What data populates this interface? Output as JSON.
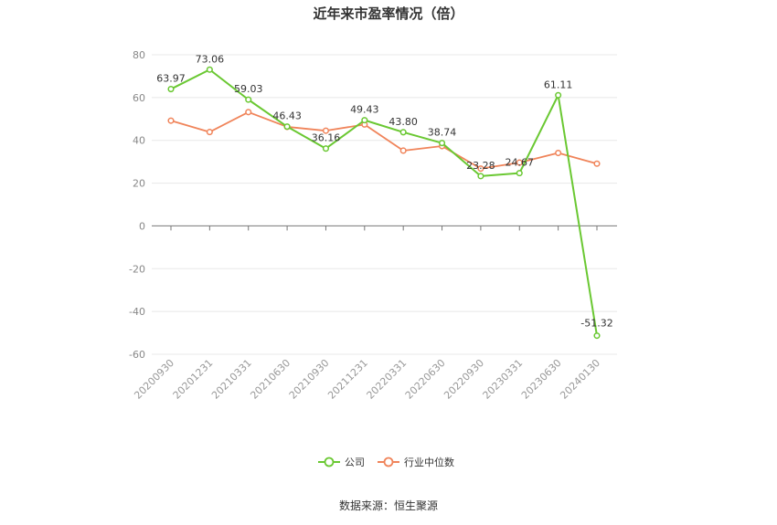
{
  "title": "近年来市盈率情况（倍）",
  "source": "数据来源：恒生聚源",
  "colors": {
    "company": "#6ac832",
    "industry": "#f0845a",
    "grid": "#e8e8e8"
  },
  "chart_data": {
    "type": "line",
    "title": "近年来市盈率情况（倍）",
    "categories": [
      "20200930",
      "20201231",
      "20210331",
      "20210630",
      "20210930",
      "20211231",
      "20220331",
      "20220630",
      "20220930",
      "20230331",
      "20230630",
      "20240130"
    ],
    "ylim": [
      -60,
      80
    ],
    "yticks": [
      80,
      60,
      40,
      20,
      0,
      -20,
      -40,
      -60
    ],
    "grid": true,
    "legend_position": "bottom-center",
    "series": [
      {
        "name": "公司",
        "color": "#6ac832",
        "values": [
          63.97,
          73.06,
          59.03,
          46.43,
          36.16,
          49.43,
          43.8,
          38.74,
          23.28,
          24.67,
          61.11,
          -51.32
        ],
        "labels": [
          "63.97",
          "73.06",
          "59.03",
          "46.43",
          "36.16",
          "49.43",
          "43.80",
          "38.74",
          "23.28",
          "24.67",
          "61.11",
          "-51.32"
        ]
      },
      {
        "name": "行业中位数",
        "color": "#f0845a",
        "values": [
          49.2,
          43.9,
          53.2,
          46.3,
          44.5,
          47.4,
          35.2,
          37.3,
          26.8,
          29.6,
          34.1,
          29.1
        ]
      }
    ]
  }
}
